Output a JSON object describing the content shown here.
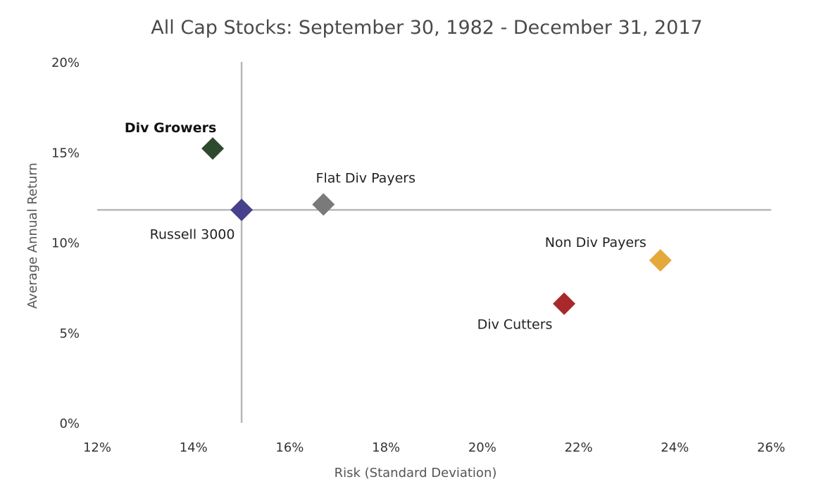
{
  "chart_data": {
    "type": "scatter",
    "title": "All Cap Stocks: September 30, 1982 - December 31, 2017",
    "xlabel": "Risk (Standard Deviation)",
    "ylabel": "Average Annual Return",
    "xlim": [
      12,
      26
    ],
    "ylim": [
      0,
      20
    ],
    "x_ticks": [
      "12%",
      "14%",
      "16%",
      "18%",
      "20%",
      "22%",
      "24%",
      "26%"
    ],
    "y_ticks": [
      "0%",
      "5%",
      "10%",
      "15%",
      "20%"
    ],
    "reference_lines": {
      "x": 15.0,
      "y": 11.8
    },
    "grid": false,
    "points": [
      {
        "label": "Div Growers",
        "x": 14.4,
        "y": 15.2,
        "color": "#2d4a2d",
        "bold": true
      },
      {
        "label": "Russell 3000",
        "x": 15.0,
        "y": 11.8,
        "color": "#46418a",
        "bold": false
      },
      {
        "label": "Flat Div Payers",
        "x": 16.7,
        "y": 12.1,
        "color": "#7a7a7a",
        "bold": false
      },
      {
        "label": "Non Div Payers",
        "x": 23.7,
        "y": 9.0,
        "color": "#e3a93a",
        "bold": false
      },
      {
        "label": "Div Cutters",
        "x": 21.7,
        "y": 6.6,
        "color": "#a8282b",
        "bold": false
      }
    ]
  }
}
